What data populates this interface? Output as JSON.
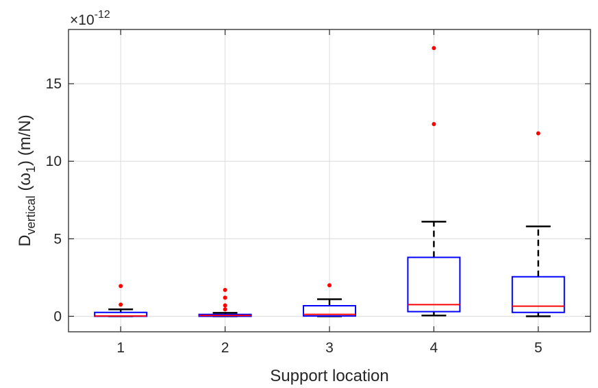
{
  "chart_data": {
    "type": "box",
    "xlabel": "Support location",
    "ylabel": {
      "main": "D",
      "sub": "vertical",
      "mid": " (ω",
      "sub2": "1",
      "tail": ") (m/N)"
    },
    "y_exponent": {
      "prefix": "×10",
      "power": "-12"
    },
    "xlim": [
      0.5,
      5.5
    ],
    "ylim": [
      -1,
      18.5
    ],
    "xticks": [
      1,
      2,
      3,
      4,
      5
    ],
    "xtick_labels": [
      "1",
      "2",
      "3",
      "4",
      "5"
    ],
    "yticks": [
      0,
      5,
      10,
      15
    ],
    "ytick_labels": [
      "0",
      "5",
      "10",
      "15"
    ],
    "grid": true,
    "series": [
      {
        "category": "1",
        "whisker_low": 0.0,
        "q1": 0.0,
        "median": 0.02,
        "q3": 0.25,
        "whisker_high": 0.45,
        "outliers": [
          0.75,
          1.95
        ]
      },
      {
        "category": "2",
        "whisker_low": 0.0,
        "q1": 0.0,
        "median": 0.05,
        "q3": 0.12,
        "whisker_high": 0.22,
        "outliers": [
          0.45,
          0.7,
          1.2,
          1.7
        ]
      },
      {
        "category": "3",
        "whisker_low": 0.0,
        "q1": 0.02,
        "median": 0.12,
        "q3": 0.68,
        "whisker_high": 1.1,
        "outliers": [
          2.0
        ]
      },
      {
        "category": "4",
        "whisker_low": 0.05,
        "q1": 0.3,
        "median": 0.75,
        "q3": 3.8,
        "whisker_high": 6.1,
        "outliers": [
          12.4,
          17.3
        ]
      },
      {
        "category": "5",
        "whisker_low": 0.0,
        "q1": 0.25,
        "median": 0.65,
        "q3": 2.55,
        "whisker_high": 5.8,
        "outliers": [
          11.8
        ]
      }
    ],
    "colors": {
      "box": "#0000ff",
      "median": "#ff0000",
      "whisker": "#000000",
      "outlier": "#ff0000",
      "grid": "#dcdcdc",
      "axis": "#262626"
    }
  }
}
